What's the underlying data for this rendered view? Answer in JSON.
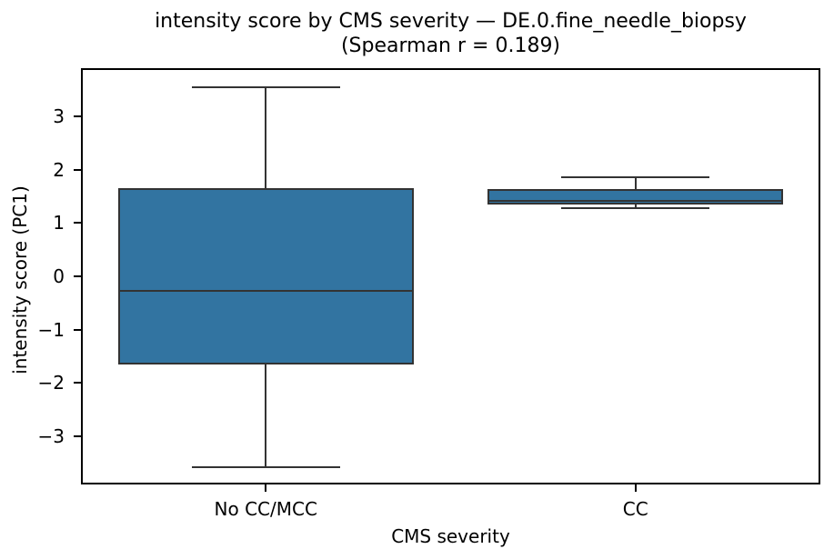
{
  "title": {
    "line1": "intensity score by CMS severity — DE.0.fine_needle_biopsy",
    "line2": "(Spearman r = 0.189)"
  },
  "chart_data": {
    "type": "box",
    "title": "intensity score by CMS severity — DE.0.fine_needle_biopsy (Spearman r = 0.189)",
    "xlabel": "CMS severity",
    "ylabel": "intensity score (PC1)",
    "categories": [
      "No CC/MCC",
      "CC"
    ],
    "series": [
      {
        "category": "No CC/MCC",
        "whisker_low": -3.58,
        "q1": -1.66,
        "median": -0.28,
        "q3": 1.66,
        "whisker_high": 3.54
      },
      {
        "category": "CC",
        "whisker_low": 1.28,
        "q1": 1.34,
        "median": 1.42,
        "q3": 1.64,
        "whisker_high": 1.85
      }
    ],
    "ylim": [
      -3.9,
      3.9
    ],
    "yticks": [
      3,
      2,
      1,
      0,
      -1,
      -2,
      -3
    ],
    "grid": false,
    "legend_position": "none",
    "box_fill_color": "#3274a1",
    "box_edge_color": "#333333",
    "axis_color": "#000000",
    "background_color": "#ffffff"
  }
}
